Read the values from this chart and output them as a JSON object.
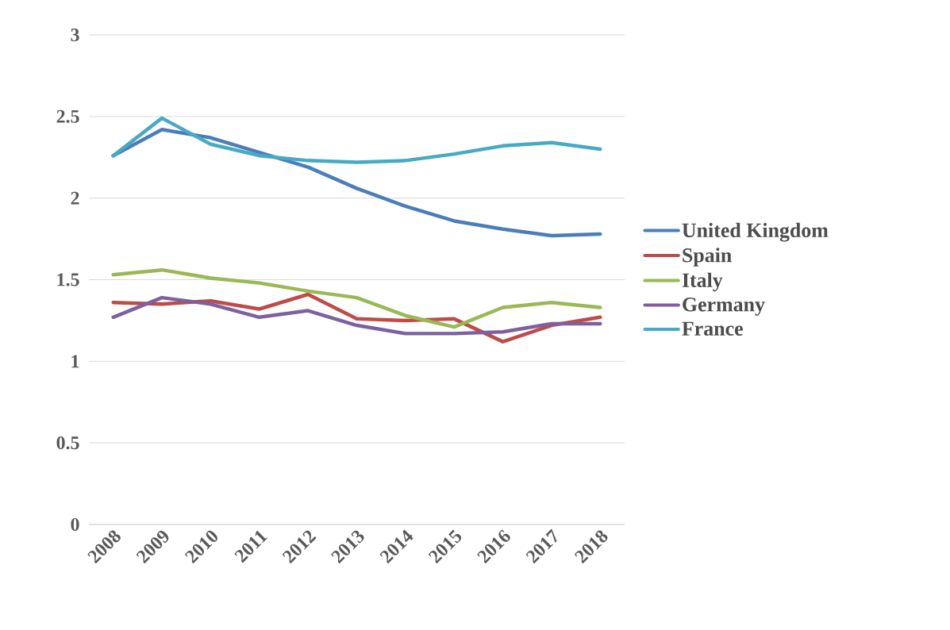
{
  "chart_data": {
    "type": "line",
    "categories": [
      "2008",
      "2009",
      "2010",
      "2011",
      "2012",
      "2013",
      "2014",
      "2015",
      "2016",
      "2017",
      "2018"
    ],
    "series": [
      {
        "name": "United Kingdom",
        "color": "#4a7ebb",
        "values": [
          2.26,
          2.42,
          2.37,
          2.28,
          2.19,
          2.06,
          1.95,
          1.86,
          1.81,
          1.77,
          1.78
        ]
      },
      {
        "name": "Spain",
        "color": "#be4b48",
        "values": [
          1.36,
          1.35,
          1.37,
          1.32,
          1.41,
          1.26,
          1.25,
          1.26,
          1.12,
          1.22,
          1.27
        ]
      },
      {
        "name": "Italy",
        "color": "#98b954",
        "values": [
          1.53,
          1.56,
          1.51,
          1.48,
          1.43,
          1.39,
          1.28,
          1.21,
          1.33,
          1.36,
          1.33
        ]
      },
      {
        "name": "Germany",
        "color": "#7d60a0",
        "values": [
          1.27,
          1.39,
          1.35,
          1.27,
          1.31,
          1.22,
          1.17,
          1.17,
          1.18,
          1.23,
          1.23
        ]
      },
      {
        "name": "France",
        "color": "#46aac5",
        "values": [
          2.26,
          2.49,
          2.33,
          2.26,
          2.23,
          2.22,
          2.23,
          2.27,
          2.32,
          2.34,
          2.3
        ]
      }
    ],
    "ylim": [
      0,
      3
    ],
    "yticks": [
      0,
      0.5,
      1,
      1.5,
      2,
      2.5,
      3
    ],
    "grid": "y",
    "legend": "right",
    "line_style": "solid"
  }
}
